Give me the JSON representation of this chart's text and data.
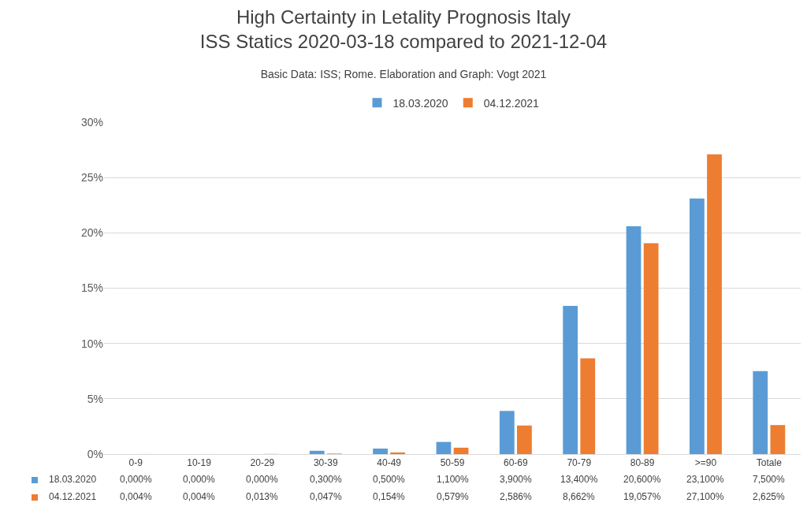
{
  "chart_data": {
    "type": "bar",
    "title": "High Certainty in Letality Prognosis Italy\nISS Statics 2020-03-18 compared to 2021-12-04",
    "subtitle": "Basic Data: ISS; Rome. Elaboration and Graph: Vogt 2021",
    "categories": [
      "0-9",
      "10-19",
      "20-29",
      "30-39",
      "40-49",
      "50-59",
      "60-69",
      "70-79",
      "80-89",
      ">=90",
      "Totale"
    ],
    "series": [
      {
        "name": "18.03.2020",
        "color": "#5b9bd5",
        "values": [
          0,
          0,
          0,
          0.3,
          0.5,
          1.1,
          3.9,
          13.4,
          20.6,
          23.1,
          7.5
        ],
        "value_labels": [
          "0,000%",
          "0,000%",
          "0,000%",
          "0,300%",
          "0,500%",
          "1,100%",
          "3,900%",
          "13,400%",
          "20,600%",
          "23,100%",
          "7,500%"
        ]
      },
      {
        "name": "04.12.2021",
        "color": "#ed7d31",
        "values": [
          0.004,
          0.004,
          0.013,
          0.047,
          0.154,
          0.579,
          2.586,
          8.662,
          19.057,
          27.1,
          2.625
        ],
        "value_labels": [
          "0,004%",
          "0,004%",
          "0,013%",
          "0,047%",
          "0,154%",
          "0,579%",
          "2,586%",
          "8,662%",
          "19,057%",
          "27,100%",
          "2,625%"
        ]
      }
    ],
    "ylim": [
      0,
      30
    ],
    "yticks": [
      {
        "value": 0,
        "label": "0%"
      },
      {
        "value": 5,
        "label": "5%"
      },
      {
        "value": 10,
        "label": "10%"
      },
      {
        "value": 15,
        "label": "15%"
      },
      {
        "value": 20,
        "label": "20%"
      },
      {
        "value": 25,
        "label": "25%"
      },
      {
        "value": 30,
        "label": "30%"
      }
    ],
    "grid": "y",
    "legend": "top"
  }
}
